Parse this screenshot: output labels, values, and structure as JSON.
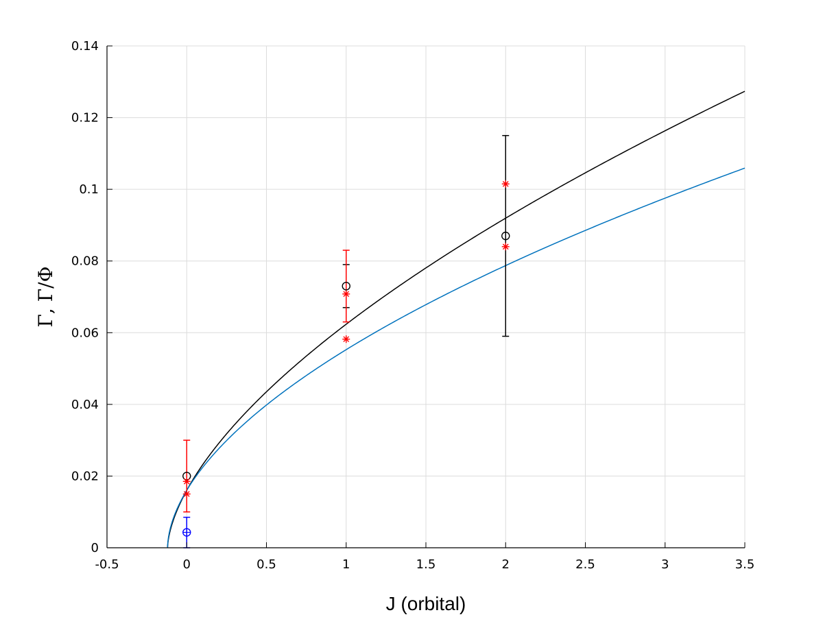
{
  "chart_data": {
    "type": "scatter",
    "title": "",
    "xlabel": "J (orbital)",
    "ylabel": "Γ,  Γ/Φ",
    "xlim": [
      -0.5,
      3.5
    ],
    "ylim": [
      0,
      0.14
    ],
    "xticks": [
      -0.5,
      0,
      0.5,
      1,
      1.5,
      2,
      2.5,
      3,
      3.5
    ],
    "xtick_labels": [
      "-0.5",
      "0",
      "0.5",
      "1",
      "1.5",
      "2",
      "2.5",
      "3",
      "3.5"
    ],
    "yticks": [
      0,
      0.02,
      0.04,
      0.06,
      0.08,
      0.1,
      0.12,
      0.14
    ],
    "ytick_labels": [
      "0",
      "0.02",
      "0.04",
      "0.06",
      "0.08",
      "0.1",
      "0.12",
      "0.14"
    ],
    "grid": true,
    "legend": "none",
    "curves": [
      {
        "color": "#000000",
        "x0": -0.12,
        "a": 0.0582,
        "p": 0.6087
      },
      {
        "color": "#0072bd",
        "x0": -0.12,
        "a": 0.0519,
        "p": 0.5545
      }
    ],
    "series": [
      {
        "marker": "circle",
        "color": "#000000",
        "points": [
          {
            "x": 0,
            "y": 0.02
          },
          {
            "x": 1,
            "y": 0.073,
            "err_lo": 0.067,
            "err_hi": 0.079
          },
          {
            "x": 2,
            "y": 0.087,
            "err_lo": 0.059,
            "err_hi": 0.115
          }
        ]
      },
      {
        "marker": "star",
        "color": "#ff0000",
        "points": [
          {
            "x": 0,
            "y": 0.0185
          },
          {
            "x": 0,
            "y": 0.015
          },
          {
            "x": 1,
            "y": 0.0708,
            "err_lo": 0.063,
            "err_hi": 0.083
          },
          {
            "x": 1,
            "y": 0.0582
          },
          {
            "x": 2,
            "y": 0.1015
          },
          {
            "x": 2,
            "y": 0.084
          }
        ]
      },
      {
        "marker": "circle-plus",
        "color": "#0000ff",
        "points": [
          {
            "x": 0,
            "y": 0.0043,
            "err_lo": 0.0,
            "err_hi": 0.0085
          }
        ]
      }
    ],
    "red_errorbars": [
      {
        "x": 0,
        "lo": 0.01,
        "hi": 0.03
      }
    ]
  }
}
